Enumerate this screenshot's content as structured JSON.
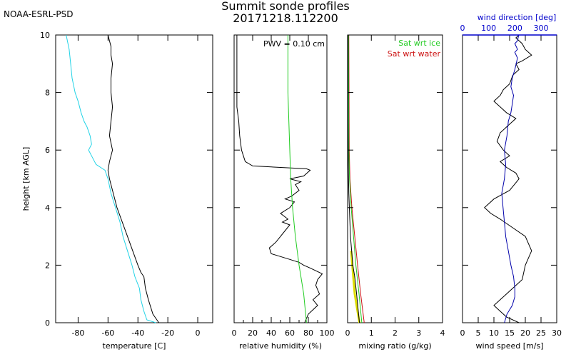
{
  "header": {
    "org": "NOAA-ESRL-PSD",
    "title": "Summit sonde profiles",
    "subtitle": "20171218.112200"
  },
  "chart_data": [
    {
      "type": "line",
      "id": "temperature",
      "xlabel": "temperature [C]",
      "ylabel": "height [km AGL]",
      "xlim": [
        -95,
        10
      ],
      "ylim": [
        0,
        10
      ],
      "xticks": [
        -80,
        -60,
        -40,
        -20,
        0
      ],
      "yticks": [
        0,
        2,
        4,
        6,
        8,
        10
      ],
      "series": [
        {
          "color": "#000000",
          "x": [
            -26,
            -30,
            -33,
            -35,
            -36,
            -38,
            -40,
            -47,
            -54,
            -59,
            -60,
            -59,
            -57,
            -59,
            -58,
            -57,
            -58,
            -58,
            -57,
            -58,
            -58,
            -59,
            -60
          ],
          "y": [
            0.0,
            0.3,
            0.8,
            1.2,
            1.6,
            1.75,
            2.0,
            3.0,
            4.0,
            5.0,
            5.3,
            5.6,
            6.0,
            6.5,
            7.0,
            7.5,
            8.0,
            8.5,
            9.0,
            9.3,
            9.6,
            9.8,
            10.0
          ]
        },
        {
          "color": "#22d3e6",
          "x": [
            -28,
            -34,
            -36,
            -38,
            -39,
            -42,
            -44,
            -47,
            -50,
            -52,
            -55,
            -58,
            -60,
            -62,
            -68,
            -71,
            -73,
            -71,
            -72,
            -74,
            -76,
            -78,
            -80,
            -82,
            -84,
            -85,
            -86,
            -88
          ],
          "y": [
            0.0,
            0.1,
            0.4,
            0.8,
            1.2,
            1.6,
            2.0,
            2.5,
            3.0,
            3.5,
            4.0,
            4.5,
            5.0,
            5.3,
            5.5,
            5.8,
            6.0,
            6.2,
            6.5,
            6.8,
            7.0,
            7.3,
            7.7,
            8.0,
            8.5,
            9.0,
            9.5,
            10.0
          ]
        }
      ]
    },
    {
      "type": "line",
      "id": "humidity",
      "xlabel": "relative humidity (%)",
      "xlim": [
        0,
        100
      ],
      "ylim": [
        0,
        10
      ],
      "xticks": [
        0,
        20,
        40,
        60,
        80,
        100
      ],
      "xtick_labels": [
        "0",
        "20",
        "40",
        "60",
        "80",
        "100"
      ],
      "minor_xticks": [
        10,
        30,
        50,
        70,
        90
      ],
      "annotation": "PWV = 0.10 cm",
      "series": [
        {
          "color": "#000000",
          "x": [
            76,
            80,
            90,
            85,
            92,
            88,
            90,
            95,
            82,
            75,
            70,
            60,
            50,
            40,
            38,
            45,
            50,
            55,
            60,
            52,
            58,
            50,
            60,
            65,
            55,
            62,
            70,
            66,
            72,
            60,
            75,
            82,
            78,
            20,
            12,
            10,
            8,
            6,
            5,
            3,
            3
          ],
          "y": [
            0.0,
            0.3,
            0.6,
            0.8,
            1.0,
            1.3,
            1.5,
            1.7,
            1.9,
            2.0,
            2.1,
            2.2,
            2.3,
            2.4,
            2.6,
            2.8,
            3.0,
            3.2,
            3.4,
            3.5,
            3.6,
            3.8,
            4.0,
            4.2,
            4.3,
            4.4,
            4.6,
            4.8,
            4.9,
            5.0,
            5.1,
            5.3,
            5.35,
            5.45,
            5.6,
            5.8,
            6.0,
            6.5,
            7.0,
            7.5,
            10.0
          ]
        },
        {
          "color": "#22cc22",
          "x": [
            78,
            75,
            70,
            66,
            63,
            61,
            60,
            59,
            58,
            58
          ],
          "y": [
            0.0,
            1.0,
            2.0,
            3.0,
            4.0,
            5.0,
            6.0,
            7.0,
            8.0,
            10.0
          ]
        }
      ]
    },
    {
      "type": "line",
      "id": "mixing",
      "xlabel": "mixing ratio (g/kg)",
      "xlim": [
        0,
        4
      ],
      "ylim": [
        0,
        10
      ],
      "xticks": [
        0,
        1,
        2,
        3,
        4
      ],
      "legend": [
        {
          "label": "Sat wrt ice",
          "color": "#22cc22"
        },
        {
          "label": "Sat wrt water",
          "color": "#cc1111"
        }
      ],
      "series": [
        {
          "color": "#cc1111",
          "x": [
            0.7,
            0.55,
            0.42,
            0.3,
            0.18,
            0.1,
            0.07,
            0.05
          ],
          "y": [
            0.0,
            1.0,
            2.0,
            3.0,
            4.0,
            5.0,
            6.0,
            10.0
          ]
        },
        {
          "color": "#22cc22",
          "x": [
            0.6,
            0.48,
            0.35,
            0.25,
            0.15,
            0.08,
            0.05,
            0.04
          ],
          "y": [
            0.0,
            1.0,
            2.0,
            3.0,
            4.0,
            5.0,
            6.0,
            10.0
          ]
        },
        {
          "color": "#dddd00",
          "x": [
            0.5,
            0.4,
            0.3,
            0.25,
            0.2,
            0.15
          ],
          "y": [
            0.0,
            0.5,
            1.0,
            1.5,
            2.0,
            2.5
          ]
        },
        {
          "color": "#000000",
          "x": [
            0.5,
            0.45,
            0.38,
            0.3,
            0.22,
            0.12,
            0.05,
            0.03,
            0.02,
            0.02
          ],
          "y": [
            0.0,
            0.4,
            1.0,
            1.6,
            2.0,
            3.0,
            4.5,
            5.5,
            7.0,
            10.0
          ]
        }
      ]
    },
    {
      "type": "line",
      "id": "wind",
      "xlabel": "wind speed [m/s]",
      "xlim": [
        0,
        30
      ],
      "ylim": [
        0,
        10
      ],
      "xticks": [
        0,
        5,
        10,
        15,
        20,
        25,
        30
      ],
      "top_axis": {
        "label": "wind direction [deg]",
        "xlim": [
          0,
          360
        ],
        "xticks": [
          0,
          100,
          200,
          300
        ],
        "color": "#0000cc"
      },
      "series": [
        {
          "color": "#000000",
          "x": [
            18,
            14,
            12,
            10,
            12,
            14,
            19,
            20,
            22,
            20,
            16,
            12,
            9,
            7,
            10,
            15,
            18,
            17,
            14,
            12,
            15,
            13,
            11,
            12,
            15,
            17,
            14,
            12,
            10,
            12,
            13,
            15,
            16,
            18,
            17,
            19,
            22,
            20,
            19,
            17,
            18
          ],
          "y": [
            0.0,
            0.2,
            0.4,
            0.6,
            0.8,
            1.0,
            1.5,
            2.0,
            2.5,
            3.0,
            3.3,
            3.6,
            3.8,
            4.0,
            4.3,
            4.6,
            5.0,
            5.2,
            5.4,
            5.6,
            5.8,
            6.0,
            6.3,
            6.6,
            6.9,
            7.1,
            7.3,
            7.5,
            7.7,
            7.9,
            8.1,
            8.3,
            8.6,
            8.8,
            9.0,
            9.1,
            9.3,
            9.5,
            9.7,
            9.9,
            10.0
          ]
        },
        {
          "color": "#0000aa",
          "x": [
            160,
            170,
            190,
            200,
            200,
            195,
            185,
            175,
            165,
            160,
            155,
            150,
            160,
            165,
            160,
            170,
            175,
            185,
            190,
            195,
            185,
            190,
            200,
            205,
            210,
            200,
            210,
            205,
            200,
            210,
            215
          ],
          "y": [
            0.0,
            0.3,
            0.6,
            0.9,
            1.2,
            1.6,
            2.0,
            2.5,
            3.0,
            3.5,
            4.0,
            4.5,
            5.0,
            5.5,
            6.0,
            6.5,
            7.0,
            7.3,
            7.6,
            7.9,
            8.2,
            8.5,
            8.8,
            9.0,
            9.2,
            9.4,
            9.5,
            9.6,
            9.7,
            9.8,
            10.0
          ]
        }
      ]
    }
  ]
}
